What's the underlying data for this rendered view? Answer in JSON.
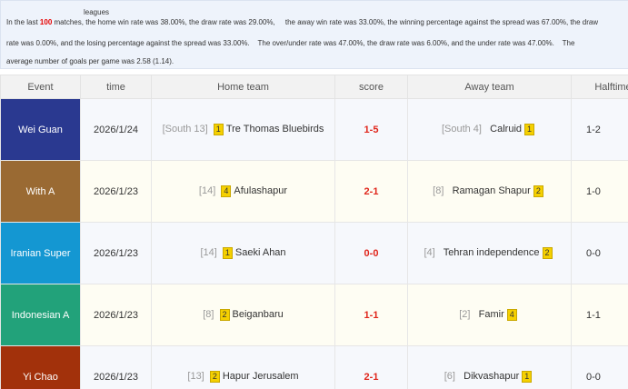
{
  "summary": {
    "heading": "leagues",
    "line1_start": "In the last",
    "count": "100",
    "line1_rest": "matches, the home win rate was 38.00%, the draw rate was 29.00%,     the away win rate was 33.00%, the winning percentage against the spread was 67.00%, the draw",
    "line2": "rate was 0.00%, and the losing percentage against the spread was 33.00%.    The over/under rate was 47.00%, the draw rate was 6.00%, and the under rate was 47.00%.    The",
    "line3": "average number of goals per game was 2.58 (1.14)."
  },
  "table": {
    "headers": [
      "Event",
      "time",
      "Home team",
      "score",
      "Away team",
      "Halftime"
    ],
    "rows": [
      {
        "event": "Wei Guan",
        "color": "#2a3990",
        "time": "2026/1/24",
        "home_rank": "[South 13]",
        "home_badge": 1,
        "home": "Tre Thomas Bluebirds",
        "score": "1-5",
        "away_rank": "[South 4]",
        "away": "Calruid",
        "away_badge": 1,
        "halftime": "1-2"
      },
      {
        "event": "With A",
        "color": "#9a6a33",
        "time": "2026/1/23",
        "home_rank": "[14]",
        "home_badge": 4,
        "home": "Afulashapur",
        "score": "2-1",
        "away_rank": "[8]",
        "away": "Ramagan Shapur",
        "away_badge": 2,
        "halftime": "1-0"
      },
      {
        "event": "Iranian Super",
        "color": "#1497d2",
        "time": "2026/1/23",
        "home_rank": "[14]",
        "home_badge": 1,
        "home": "Saeki Ahan",
        "score": "0-0",
        "away_rank": "[4]",
        "away": "Tehran independence",
        "away_badge": 2,
        "halftime": "0-0"
      },
      {
        "event": "Indonesian A",
        "color": "#22a27a",
        "time": "2026/1/23",
        "home_rank": "[8]",
        "home_badge": 2,
        "home": "Beiganbaru",
        "score": "1-1",
        "away_rank": "[2]",
        "away": "Famir",
        "away_badge": 4,
        "halftime": "1-1"
      },
      {
        "event": "Yi Chao",
        "color": "#a2310b",
        "time": "2026/1/23",
        "home_rank": "[13]",
        "home_badge": 2,
        "home": "Hapur Jerusalem",
        "score": "2-1",
        "away_rank": "[6]",
        "away": "Dikvashapur",
        "away_badge": 1,
        "halftime": "0-0"
      }
    ]
  }
}
